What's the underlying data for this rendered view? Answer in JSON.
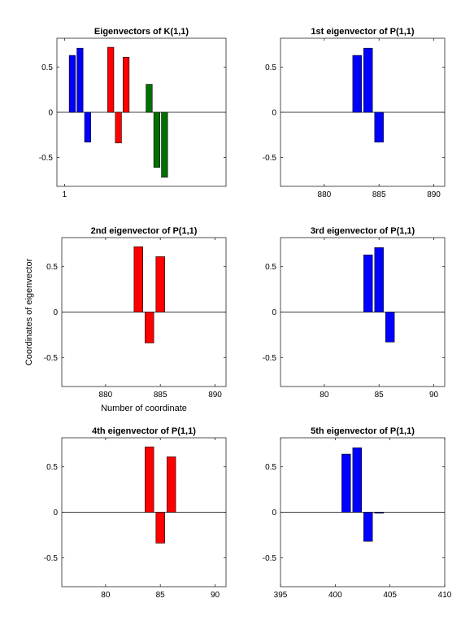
{
  "chart_data": [
    {
      "type": "bar",
      "title": "Eigenvectors of K(1,1)",
      "xlim": [
        0,
        22
      ],
      "ylim": [
        -0.82,
        0.82
      ],
      "xticks": [
        1
      ],
      "yticks": [
        0.5,
        0,
        -0.5
      ],
      "xlabel": "",
      "ylabel": "",
      "bars": [
        {
          "x": 2,
          "value": 0.63,
          "color": "#0000ff"
        },
        {
          "x": 3,
          "value": 0.71,
          "color": "#0000ff"
        },
        {
          "x": 4,
          "value": -0.33,
          "color": "#0000ff"
        },
        {
          "x": 7,
          "value": 0.72,
          "color": "#ff0000"
        },
        {
          "x": 8,
          "value": -0.34,
          "color": "#ff0000"
        },
        {
          "x": 9,
          "value": 0.61,
          "color": "#ff0000"
        },
        {
          "x": 12,
          "value": 0.31,
          "color": "#007000"
        },
        {
          "x": 13,
          "value": -0.61,
          "color": "#007000"
        },
        {
          "x": 14,
          "value": -0.72,
          "color": "#007000"
        }
      ]
    },
    {
      "type": "bar",
      "title": "1st eigenvector of P(1,1)",
      "xlim": [
        876,
        891
      ],
      "ylim": [
        -0.82,
        0.82
      ],
      "xticks": [
        880,
        885,
        890
      ],
      "yticks": [
        0.5,
        0,
        -0.5
      ],
      "xlabel": "",
      "ylabel": "",
      "bars": [
        {
          "x": 883,
          "value": 0.63,
          "color": "#0000ff"
        },
        {
          "x": 884,
          "value": 0.71,
          "color": "#0000ff"
        },
        {
          "x": 885,
          "value": -0.33,
          "color": "#0000ff"
        }
      ]
    },
    {
      "type": "bar",
      "title": "2nd eigenvector of P(1,1)",
      "xlim": [
        876,
        891
      ],
      "ylim": [
        -0.82,
        0.82
      ],
      "xticks": [
        880,
        885,
        890
      ],
      "yticks": [
        0.5,
        0,
        -0.5
      ],
      "xlabel": "Number of coordinate",
      "ylabel": "Coordinates of eigenvector",
      "bars": [
        {
          "x": 883,
          "value": 0.72,
          "color": "#ff0000"
        },
        {
          "x": 884,
          "value": -0.34,
          "color": "#ff0000"
        },
        {
          "x": 885,
          "value": 0.61,
          "color": "#ff0000"
        }
      ]
    },
    {
      "type": "bar",
      "title": "3rd eigenvector of P(1,1)",
      "xlim": [
        76,
        91
      ],
      "ylim": [
        -0.82,
        0.82
      ],
      "xticks": [
        80,
        85,
        90
      ],
      "yticks": [
        0.5,
        0,
        -0.5
      ],
      "xlabel": "",
      "ylabel": "",
      "bars": [
        {
          "x": 84,
          "value": 0.63,
          "color": "#0000ff"
        },
        {
          "x": 85,
          "value": 0.71,
          "color": "#0000ff"
        },
        {
          "x": 86,
          "value": -0.33,
          "color": "#0000ff"
        }
      ]
    },
    {
      "type": "bar",
      "title": "4th eigenvector of P(1,1)",
      "xlim": [
        76,
        91
      ],
      "ylim": [
        -0.82,
        0.82
      ],
      "xticks": [
        80,
        85,
        90
      ],
      "yticks": [
        0.5,
        0,
        -0.5
      ],
      "xlabel": "",
      "ylabel": "",
      "bars": [
        {
          "x": 84,
          "value": 0.72,
          "color": "#ff0000"
        },
        {
          "x": 85,
          "value": -0.34,
          "color": "#ff0000"
        },
        {
          "x": 86,
          "value": 0.61,
          "color": "#ff0000"
        }
      ]
    },
    {
      "type": "bar",
      "title": "5th eigenvector of P(1,1)",
      "xlim": [
        395,
        410
      ],
      "ylim": [
        -0.82,
        0.82
      ],
      "xticks": [
        395,
        400,
        405,
        410
      ],
      "yticks": [
        0.5,
        0,
        -0.5
      ],
      "xlabel": "",
      "ylabel": "",
      "bars": [
        {
          "x": 401,
          "value": 0.64,
          "color": "#0000ff"
        },
        {
          "x": 402,
          "value": 0.71,
          "color": "#0000ff"
        },
        {
          "x": 403,
          "value": -0.32,
          "color": "#0000ff"
        },
        {
          "x": 404,
          "value": -0.01,
          "color": "#0000ff"
        }
      ]
    }
  ]
}
